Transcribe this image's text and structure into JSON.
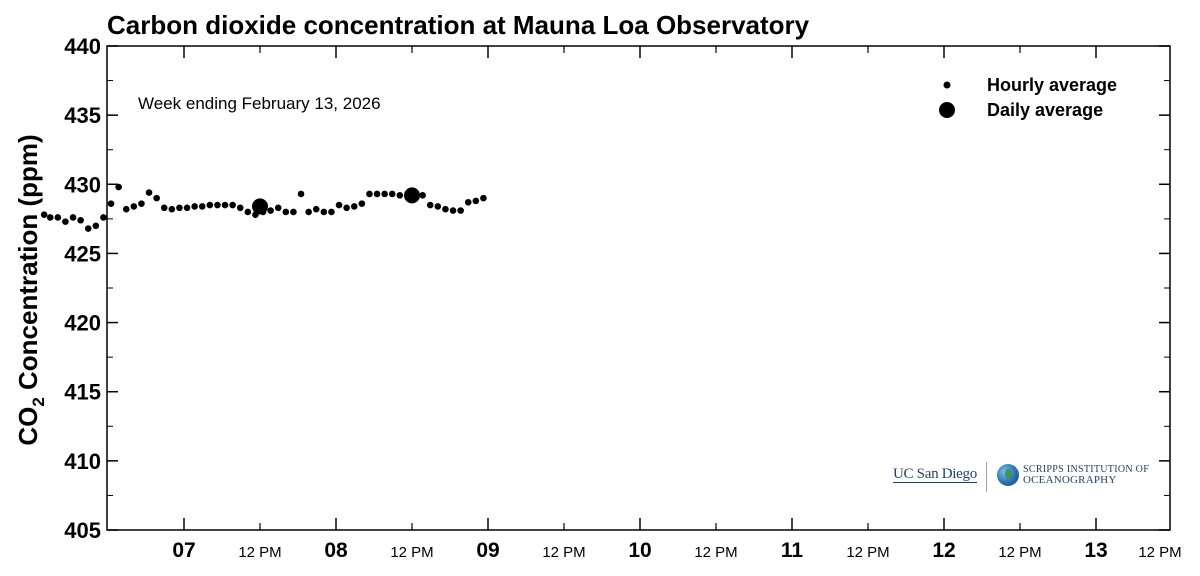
{
  "chart_data": {
    "type": "scatter",
    "title": "Carbon dioxide concentration at Mauna Loa Observatory",
    "ylabel_main": "CO",
    "ylabel_sub": "2",
    "ylabel_rest": " Concentration (ppm)",
    "annotation": "Week ending February 13, 2026",
    "ylim": [
      405,
      440
    ],
    "yticks": [
      405,
      410,
      415,
      420,
      425,
      430,
      435,
      440
    ],
    "xlim": [
      0,
      7
    ],
    "x_unit": "days since Feb 6 00:00",
    "x_major_ticks": [
      {
        "x": 1,
        "label": "07"
      },
      {
        "x": 2,
        "label": "08"
      },
      {
        "x": 3,
        "label": "09"
      },
      {
        "x": 4,
        "label": "10"
      },
      {
        "x": 5,
        "label": "11"
      },
      {
        "x": 6,
        "label": "12"
      },
      {
        "x": 7,
        "label": "13"
      }
    ],
    "x_minor_ticks": [
      {
        "x": 1.5,
        "label": "12 PM"
      },
      {
        "x": 2.5,
        "label": "12 PM"
      },
      {
        "x": 3.5,
        "label": "12 PM"
      },
      {
        "x": 4.5,
        "label": "12 PM"
      },
      {
        "x": 5.5,
        "label": "12 PM"
      },
      {
        "x": 6.5,
        "label": "12 PM"
      },
      {
        "x": 7.5,
        "label": "12 PM"
      }
    ],
    "legend_position": "top-right",
    "series": [
      {
        "name": "Hourly average",
        "marker": "small-dot",
        "points": [
          [
            0.08,
            427.8
          ],
          [
            0.12,
            427.6
          ],
          [
            0.17,
            427.6
          ],
          [
            0.22,
            427.3
          ],
          [
            0.27,
            427.6
          ],
          [
            0.32,
            427.4
          ],
          [
            0.37,
            426.8
          ],
          [
            0.42,
            427.0
          ],
          [
            0.47,
            427.6
          ],
          [
            0.52,
            428.6
          ],
          [
            0.57,
            429.8
          ],
          [
            0.62,
            428.2
          ],
          [
            0.67,
            428.4
          ],
          [
            0.72,
            428.6
          ],
          [
            0.77,
            429.4
          ],
          [
            0.82,
            429.0
          ],
          [
            0.87,
            428.3
          ],
          [
            0.92,
            428.2
          ],
          [
            0.97,
            428.3
          ],
          [
            1.02,
            428.3
          ],
          [
            1.07,
            428.4
          ],
          [
            1.12,
            428.4
          ],
          [
            1.17,
            428.5
          ],
          [
            1.22,
            428.5
          ],
          [
            1.27,
            428.5
          ],
          [
            1.32,
            428.5
          ],
          [
            1.37,
            428.3
          ],
          [
            1.42,
            428.0
          ],
          [
            1.47,
            427.8
          ],
          [
            1.52,
            428.0
          ],
          [
            1.57,
            428.1
          ],
          [
            1.62,
            428.3
          ],
          [
            1.67,
            428.0
          ],
          [
            1.72,
            428.0
          ],
          [
            1.77,
            429.3
          ],
          [
            1.82,
            428.0
          ],
          [
            1.87,
            428.2
          ],
          [
            1.92,
            428.0
          ],
          [
            1.97,
            428.0
          ],
          [
            2.02,
            428.5
          ],
          [
            2.07,
            428.3
          ],
          [
            2.12,
            428.4
          ],
          [
            2.17,
            428.6
          ],
          [
            2.22,
            429.3
          ],
          [
            2.27,
            429.3
          ],
          [
            2.32,
            429.3
          ],
          [
            2.37,
            429.3
          ],
          [
            2.42,
            429.2
          ],
          [
            2.47,
            429.2
          ],
          [
            2.52,
            429.0
          ],
          [
            2.57,
            429.2
          ],
          [
            2.62,
            428.5
          ],
          [
            2.67,
            428.4
          ],
          [
            2.72,
            428.2
          ],
          [
            2.77,
            428.1
          ],
          [
            2.82,
            428.1
          ],
          [
            2.87,
            428.7
          ],
          [
            2.92,
            428.8
          ],
          [
            2.97,
            429.0
          ]
        ]
      },
      {
        "name": "Daily average",
        "marker": "large-dot",
        "points": [
          [
            1.5,
            428.4
          ],
          [
            2.5,
            429.2
          ]
        ]
      }
    ]
  },
  "logos": {
    "ucsd": "UC San Diego",
    "scripps_line1": "SCRIPPS INSTITUTION OF",
    "scripps_line2": "OCEANOGRAPHY"
  }
}
